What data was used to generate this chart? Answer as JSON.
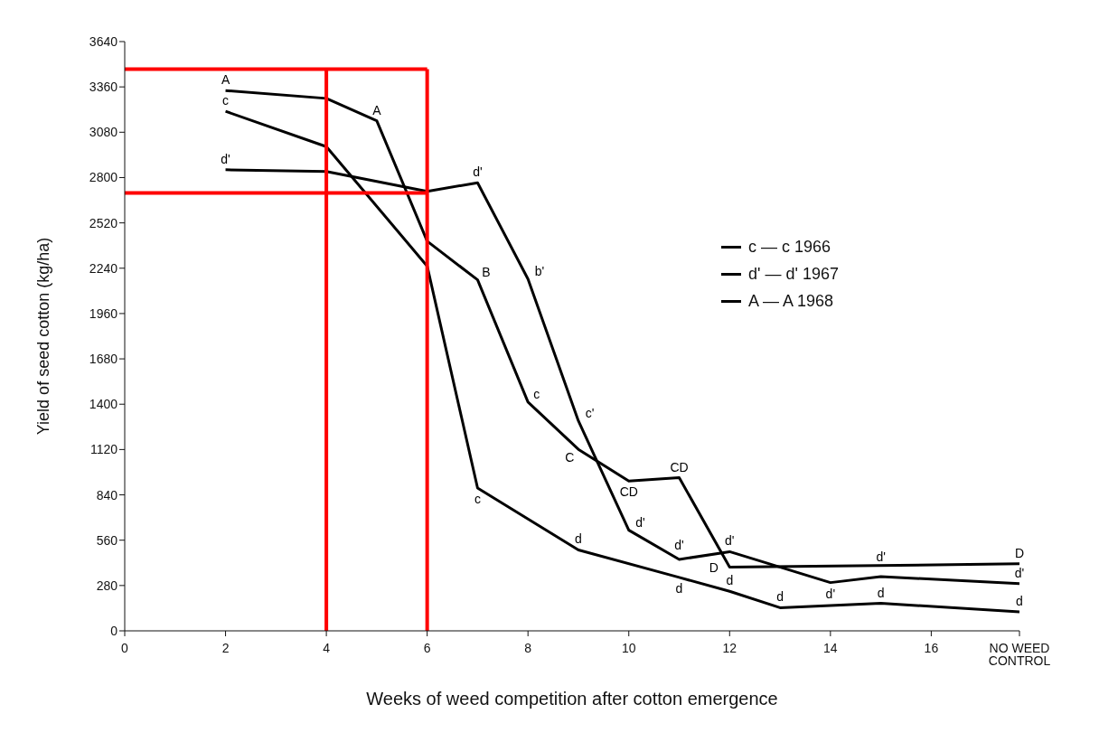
{
  "chart_data": {
    "type": "line",
    "xlabel": "Weeks of weed competition after cotton emergence",
    "ylabel": "Yield of seed cotton (kg/ha)",
    "xlim": [
      0,
      17.75
    ],
    "xticks": [
      0,
      2,
      4,
      6,
      8,
      10,
      12,
      14,
      16,
      {
        "value": 17.75,
        "label": "NO WEED CONTROL"
      }
    ],
    "ylim": [
      0,
      3640
    ],
    "yticks": [
      0,
      280,
      560,
      840,
      1120,
      1400,
      1680,
      1960,
      2240,
      2520,
      2800,
      3080,
      3360,
      3640
    ],
    "grid": false,
    "legend": "right",
    "marker": "none",
    "line_style": "solid",
    "series": [
      {
        "name": "c — c 1966",
        "color": "#000000",
        "x": [
          2,
          4,
          6,
          7,
          9,
          11,
          12,
          13,
          15,
          17.75
        ],
        "values": [
          3209,
          2991,
          2253,
          882,
          500,
          330,
          244,
          143,
          170,
          117
        ],
        "value_labels": [
          "c",
          null,
          null,
          "c",
          "d",
          "d",
          "d",
          "d",
          "d",
          "d"
        ]
      },
      {
        "name": "d' — d' 1967",
        "color": "#000000",
        "x": [
          2,
          4,
          6,
          7,
          8,
          9,
          10,
          11,
          12,
          14,
          15,
          17.75
        ],
        "values": [
          2848,
          2837,
          2715,
          2768,
          2173,
          1297,
          622,
          441,
          489,
          298,
          335,
          292
        ],
        "value_labels": [
          "d'",
          null,
          null,
          "d'",
          "b'",
          "c'",
          "d'",
          "d'",
          "d'",
          "d'",
          "d'",
          "d'"
        ]
      },
      {
        "name": "A — A 1968",
        "color": "#000000",
        "x": [
          2,
          4,
          5,
          6,
          7,
          8,
          9,
          10,
          11,
          12,
          17.75
        ],
        "values": [
          3337,
          3289,
          3151,
          2407,
          2168,
          1413,
          1121,
          925,
          946,
          393,
          414
        ],
        "value_labels": [
          "A",
          null,
          "A",
          null,
          "B",
          "c",
          "C",
          "CD",
          "CD",
          "D",
          "D"
        ]
      }
    ],
    "ref_lines": [
      {
        "axis": "x",
        "value": 4,
        "color": "#ff0000"
      },
      {
        "axis": "x",
        "value": 6,
        "color": "#ff0000"
      },
      {
        "axis": "y",
        "value": 3470,
        "color": "#ff0000"
      },
      {
        "axis": "y",
        "value": 2705,
        "color": "#ff0000"
      }
    ]
  }
}
